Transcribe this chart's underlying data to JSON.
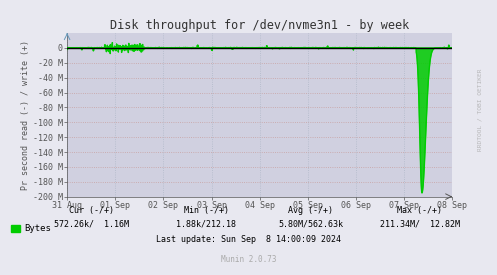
{
  "title": "Disk throughput for /dev/nvme3n1 - by week",
  "ylabel": "Pr second read (-) / write (+)",
  "background_color": "#e8e8f0",
  "plot_bg_color": "#d0d0e0",
  "grid_color_h": "#c8a0a0",
  "grid_color_v": "#b0b8c8",
  "title_color": "#333333",
  "line_color": "#00cc00",
  "axis_color": "#555555",
  "ylim": [
    -200,
    20
  ],
  "yticks": [
    0,
    -20,
    -40,
    -60,
    -80,
    -100,
    -120,
    -140,
    -160,
    -180,
    -200
  ],
  "ytick_labels": [
    "0",
    "-20 M",
    "-40 M",
    "-60 M",
    "-80 M",
    "-100 M",
    "-120 M",
    "-140 M",
    "-160 M",
    "-180 M",
    "-200 M"
  ],
  "xstart": 0,
  "xend": 8,
  "xticks": [
    0,
    1,
    2,
    3,
    4,
    5,
    6,
    7,
    8
  ],
  "xtick_labels": [
    "31 Aug",
    "01 Sep",
    "02 Sep",
    "03 Sep",
    "04 Sep",
    "05 Sep",
    "06 Sep",
    "07 Sep",
    "08 Sep"
  ],
  "legend_label": "Bytes",
  "cur_text": "Cur (-/+)",
  "cur_val": "572.26k/  1.16M",
  "min_text": "Min (-/+)",
  "min_val": "1.88k/212.18",
  "avg_text": "Avg (-/+)",
  "avg_val": "5.80M/562.63k",
  "max_text": "Max (-/+)",
  "max_val": "211.34M/  12.82M",
  "last_update": "Last update: Sun Sep  8 14:00:09 2024",
  "munin_version": "Munin 2.0.73",
  "watermark": "RRDTOOL / TOBI OETIKER"
}
